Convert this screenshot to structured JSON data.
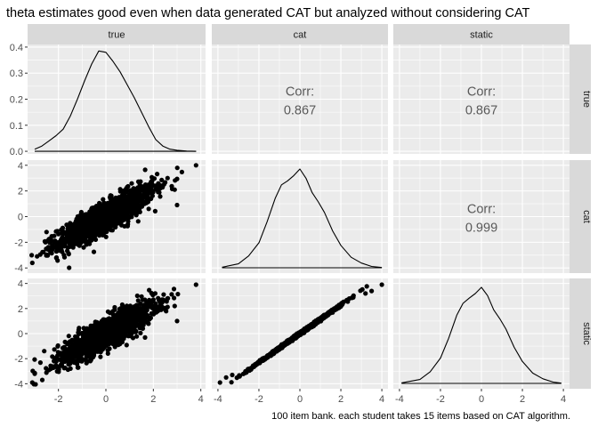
{
  "title": "theta estimates good even when data generated CAT but analyzed without considering CAT",
  "caption": "100 item bank. each student takes 15 items based on CAT algorithm.",
  "colors": {
    "panel_bg": "#ebebeb",
    "grid_major": "#ffffff",
    "strip_bg": "#d9d9d9",
    "ink": "#000000",
    "corr_text": "#595959"
  },
  "chart_data": {
    "type": "scatter",
    "subtype": "pairs matrix (ggpairs)",
    "variables": [
      "true",
      "cat",
      "static"
    ],
    "title": "theta estimates good even when data generated CAT but analyzed without considering CAT",
    "caption": "100 item bank. each student takes 15 items based on CAT algorithm.",
    "grid": true,
    "column_x_axes": [
      {
        "range": [
          -3.3,
          4.2
        ],
        "ticks": [
          -2,
          0,
          2,
          4
        ]
      },
      {
        "range": [
          -4.3,
          4.3
        ],
        "ticks": [
          -4,
          -2,
          0,
          2,
          4
        ]
      },
      {
        "range": [
          -4.3,
          4.3
        ],
        "ticks": [
          -4,
          -2,
          0,
          2,
          4
        ]
      }
    ],
    "row_y_axes": [
      {
        "range": [
          -0.01,
          0.41
        ],
        "ticks": [
          0.0,
          0.1,
          0.2,
          0.3,
          0.4
        ],
        "tick_labels": [
          "0.0",
          "0.1",
          "0.2",
          "0.3",
          "0.4"
        ]
      },
      {
        "range": [
          -4.4,
          4.4
        ],
        "ticks": [
          -4,
          -2,
          0,
          2,
          4
        ],
        "tick_labels": [
          "-4",
          "-2",
          "0",
          "2",
          "4"
        ]
      },
      {
        "range": [
          -4.4,
          4.4
        ],
        "ticks": [
          -4,
          -2,
          0,
          2,
          4
        ],
        "tick_labels": [
          "-4",
          "-2",
          "0",
          "2",
          "4"
        ]
      }
    ],
    "panels": [
      {
        "row": 0,
        "col": 0,
        "kind": "density",
        "variable": "true",
        "x": [
          -3.0,
          -2.7,
          -2.4,
          -2.1,
          -1.8,
          -1.5,
          -1.2,
          -0.9,
          -0.6,
          -0.3,
          0.0,
          0.3,
          0.6,
          0.9,
          1.2,
          1.5,
          1.8,
          2.1,
          2.4,
          2.7,
          3.0,
          3.4,
          3.8
        ],
        "y": [
          0.008,
          0.02,
          0.04,
          0.06,
          0.085,
          0.135,
          0.2,
          0.27,
          0.335,
          0.385,
          0.38,
          0.345,
          0.305,
          0.255,
          0.205,
          0.15,
          0.095,
          0.045,
          0.02,
          0.008,
          0.004,
          0.001,
          0.0
        ]
      },
      {
        "row": 0,
        "col": 1,
        "kind": "corr",
        "label": "Corr:",
        "value": "0.867"
      },
      {
        "row": 0,
        "col": 2,
        "kind": "corr",
        "label": "Corr:",
        "value": "0.867"
      },
      {
        "row": 1,
        "col": 0,
        "kind": "scatter",
        "x_var": "true",
        "y_var": "cat",
        "n_points": 1500,
        "r": 0.867,
        "sd_y": 1.16,
        "outliers": [
          [
            3.8,
            4.0
          ],
          [
            -3.1,
            -3.6
          ],
          [
            2.9,
            2.1
          ],
          [
            -2.9,
            -3.1
          ],
          [
            2.6,
            3.0
          ],
          [
            -2.3,
            -2.8
          ],
          [
            2.4,
            2.4
          ],
          [
            3.0,
            0.9
          ],
          [
            -2.5,
            -1.2
          ],
          [
            1.9,
            2.7
          ]
        ]
      },
      {
        "row": 1,
        "col": 1,
        "kind": "density",
        "variable": "cat",
        "x": [
          -3.8,
          -3.0,
          -2.5,
          -2.0,
          -1.6,
          -1.2,
          -0.9,
          -0.6,
          -0.3,
          0.0,
          0.3,
          0.6,
          0.9,
          1.2,
          1.6,
          2.0,
          2.5,
          3.0,
          3.5,
          4.0
        ],
        "y": [
          0.002,
          0.015,
          0.045,
          0.095,
          0.175,
          0.265,
          0.315,
          0.33,
          0.35,
          0.375,
          0.34,
          0.285,
          0.25,
          0.21,
          0.14,
          0.085,
          0.04,
          0.018,
          0.005,
          0.001
        ]
      },
      {
        "row": 1,
        "col": 2,
        "kind": "corr",
        "label": "Corr:",
        "value": "0.999"
      },
      {
        "row": 2,
        "col": 0,
        "kind": "scatter",
        "x_var": "true",
        "y_var": "static",
        "n_points": 1500,
        "r": 0.867,
        "sd_y": 1.16,
        "outliers": [
          [
            3.8,
            3.9
          ],
          [
            -3.1,
            -3.9
          ],
          [
            2.9,
            2.2
          ],
          [
            -3.0,
            -3.2
          ],
          [
            2.6,
            2.8
          ],
          [
            -2.4,
            -2.9
          ],
          [
            3.0,
            1.0
          ],
          [
            -2.6,
            -1.4
          ],
          [
            1.9,
            2.6
          ],
          [
            2.5,
            1.9
          ]
        ]
      },
      {
        "row": 2,
        "col": 1,
        "kind": "scatter",
        "x_var": "cat",
        "y_var": "static",
        "n_points": 1500,
        "r": 0.999,
        "sd_y": 1.15,
        "outliers": [
          [
            4.0,
            3.9
          ],
          [
            -3.9,
            -3.9
          ],
          [
            3.5,
            3.4
          ],
          [
            -3.6,
            -3.5
          ],
          [
            3.2,
            3.2
          ],
          [
            -3.3,
            -3.3
          ]
        ]
      },
      {
        "row": 2,
        "col": 2,
        "kind": "density",
        "variable": "static",
        "x": [
          -3.9,
          -3.0,
          -2.5,
          -2.0,
          -1.6,
          -1.2,
          -0.9,
          -0.6,
          -0.3,
          0.0,
          0.3,
          0.6,
          0.9,
          1.2,
          1.6,
          2.0,
          2.5,
          3.0,
          3.5,
          3.9
        ],
        "y": [
          0.002,
          0.015,
          0.045,
          0.098,
          0.175,
          0.265,
          0.31,
          0.33,
          0.348,
          0.372,
          0.34,
          0.285,
          0.25,
          0.21,
          0.14,
          0.085,
          0.04,
          0.018,
          0.005,
          0.001
        ]
      }
    ]
  }
}
